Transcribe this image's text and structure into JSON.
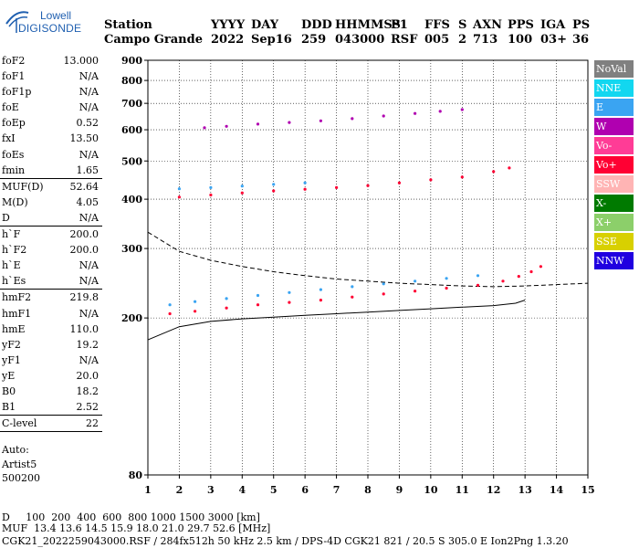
{
  "logo": {
    "brand": "Lowell",
    "product": "DIGISONDE",
    "icon": "antenna-logo-icon",
    "color": "#1f5fb0"
  },
  "header": {
    "labels": [
      "Station",
      "YYYY",
      "DAY",
      "DDD",
      "HHMMSS",
      "P1",
      "FFS",
      "S",
      "AXN",
      "PPS",
      "IGA",
      "PS"
    ],
    "values": [
      "Campo Grande",
      "2022",
      "Sep16",
      "259",
      "043000",
      "RSF",
      "005",
      "2",
      "713",
      "100",
      "03+",
      "36"
    ]
  },
  "params": [
    {
      "name": "foF2",
      "value": "13.000"
    },
    {
      "name": "foF1",
      "value": "N/A"
    },
    {
      "name": "foF1p",
      "value": "N/A"
    },
    {
      "name": "foE",
      "value": "N/A"
    },
    {
      "name": "foEp",
      "value": "0.52"
    },
    {
      "name": "fxI",
      "value": "13.50"
    },
    {
      "name": "foEs",
      "value": "N/A"
    },
    {
      "name": "fmin",
      "value": "1.65"
    },
    {
      "name": "MUF(D)",
      "value": "52.64"
    },
    {
      "name": "M(D)",
      "value": "4.05"
    },
    {
      "name": "D",
      "value": "N/A"
    },
    {
      "name": "h`F",
      "value": "200.0"
    },
    {
      "name": "h`F2",
      "value": "200.0"
    },
    {
      "name": "h`E",
      "value": "N/A"
    },
    {
      "name": "h`Es",
      "value": "N/A"
    },
    {
      "name": "hmF2",
      "value": "219.8"
    },
    {
      "name": "hmF1",
      "value": "N/A"
    },
    {
      "name": "hmE",
      "value": "110.0"
    },
    {
      "name": "yF2",
      "value": "19.2"
    },
    {
      "name": "yF1",
      "value": "N/A"
    },
    {
      "name": "yE",
      "value": "20.0"
    },
    {
      "name": "B0",
      "value": "18.2"
    },
    {
      "name": "B1",
      "value": "2.52"
    },
    {
      "name": "C-level",
      "value": "22"
    }
  ],
  "auto": {
    "line1": "Auto:",
    "line2": "Artist5",
    "line3": "500200"
  },
  "legend": [
    {
      "label": "NoVal",
      "color": "#808080"
    },
    {
      "label": "NNE",
      "color": "#12d7f0"
    },
    {
      "label": "E",
      "color": "#3aa4f2"
    },
    {
      "label": "W",
      "color": "#b000b0"
    },
    {
      "label": "Vo-",
      "color": "#ff3c96"
    },
    {
      "label": "Vo+",
      "color": "#ff0033"
    },
    {
      "label": "SSW",
      "color": "#ffb4b4"
    },
    {
      "label": "X-",
      "color": "#007a00"
    },
    {
      "label": "X+",
      "color": "#8ccf6a"
    },
    {
      "label": "SSE",
      "color": "#d8d000"
    },
    {
      "label": "NNW",
      "color": "#2000e0"
    }
  ],
  "footer": {
    "distance_row": "D     100  200  400  600  800 1000 1500 3000 [km]",
    "muf_row": "MUF  13.4 13.6 14.5 15.9 18.0 21.0 29.7 52.6 [MHz]",
    "info_row": "CGK21_2022259043000.RSF / 284fx512h 50 kHz 2.5 km / DPS-4D CGK21 821 / 20.5 S 305.0 E Ion2Png 1.3.20"
  },
  "chart_data": {
    "type": "scatter",
    "x_ticks": [
      "1",
      "2",
      "3",
      "4",
      "5",
      "6",
      "7",
      "8",
      "9",
      "10",
      "11",
      "12",
      "13",
      "14",
      "15"
    ],
    "y_ticks": [
      "80",
      "200",
      "300",
      "400",
      "500",
      "600",
      "700",
      "800",
      "900"
    ],
    "xlim": [
      1,
      15
    ],
    "ylim": [
      80,
      900
    ],
    "y_scale": "log",
    "grid": "dotted",
    "traces": [
      {
        "name": "F2 trace",
        "color": "#ff0033",
        "points": [
          [
            1.7,
            205
          ],
          [
            2.5,
            208
          ],
          [
            3.5,
            212
          ],
          [
            4.5,
            216
          ],
          [
            5.5,
            219
          ],
          [
            6.5,
            222
          ],
          [
            7.5,
            226
          ],
          [
            8.5,
            230
          ],
          [
            9.5,
            234
          ],
          [
            10.5,
            238
          ],
          [
            11.5,
            242
          ],
          [
            12.3,
            248
          ],
          [
            12.8,
            255
          ],
          [
            13.2,
            262
          ],
          [
            13.5,
            270
          ]
        ]
      },
      {
        "name": "F2 E-trace",
        "color": "#3aa4f2",
        "points": [
          [
            1.7,
            216
          ],
          [
            2.5,
            220
          ],
          [
            3.5,
            224
          ],
          [
            4.5,
            228
          ],
          [
            5.5,
            232
          ],
          [
            6.5,
            236
          ],
          [
            7.5,
            240
          ],
          [
            8.5,
            244
          ],
          [
            9.5,
            248
          ],
          [
            10.5,
            252
          ],
          [
            11.5,
            256
          ]
        ]
      },
      {
        "name": "2nd hop",
        "color": "#ff0033",
        "points": [
          [
            2.0,
            405
          ],
          [
            3.0,
            410
          ],
          [
            4.0,
            415
          ],
          [
            5.0,
            420
          ],
          [
            6.0,
            424
          ],
          [
            7.0,
            428
          ],
          [
            8.0,
            433
          ],
          [
            9.0,
            440
          ],
          [
            10.0,
            448
          ],
          [
            11.0,
            455
          ],
          [
            12.0,
            470
          ],
          [
            12.5,
            480
          ]
        ]
      },
      {
        "name": "2nd hop E",
        "color": "#3aa4f2",
        "points": [
          [
            2.0,
            425
          ],
          [
            3.0,
            428
          ],
          [
            4.0,
            432
          ],
          [
            5.0,
            436
          ],
          [
            6.0,
            440
          ]
        ]
      },
      {
        "name": "3rd hop",
        "color": "#b000b0",
        "points": [
          [
            2.8,
            607
          ],
          [
            3.5,
            612
          ],
          [
            4.5,
            620
          ],
          [
            5.5,
            626
          ],
          [
            6.5,
            632
          ],
          [
            7.5,
            640
          ],
          [
            8.5,
            650
          ],
          [
            9.5,
            660
          ],
          [
            10.3,
            668
          ],
          [
            11.0,
            675
          ]
        ]
      }
    ],
    "profile_solid": [
      [
        1.0,
        176
      ],
      [
        2.0,
        190
      ],
      [
        3.0,
        196
      ],
      [
        4.0,
        199
      ],
      [
        5.0,
        201
      ],
      [
        6.0,
        203
      ],
      [
        7.0,
        205
      ],
      [
        8.0,
        207
      ],
      [
        9.0,
        209
      ],
      [
        10.0,
        211
      ],
      [
        11.0,
        213
      ],
      [
        12.0,
        215
      ],
      [
        12.7,
        218
      ],
      [
        13.0,
        222
      ]
    ],
    "profile_dashed": [
      [
        1.0,
        330
      ],
      [
        2.0,
        295
      ],
      [
        3.0,
        280
      ],
      [
        4.0,
        270
      ],
      [
        5.0,
        262
      ],
      [
        6.0,
        256
      ],
      [
        7.0,
        251
      ],
      [
        8.0,
        248
      ],
      [
        9.0,
        245
      ],
      [
        10.0,
        243
      ],
      [
        11.0,
        241
      ],
      [
        12.0,
        240
      ],
      [
        13.0,
        241
      ],
      [
        14.0,
        243
      ],
      [
        15.0,
        245
      ]
    ]
  }
}
